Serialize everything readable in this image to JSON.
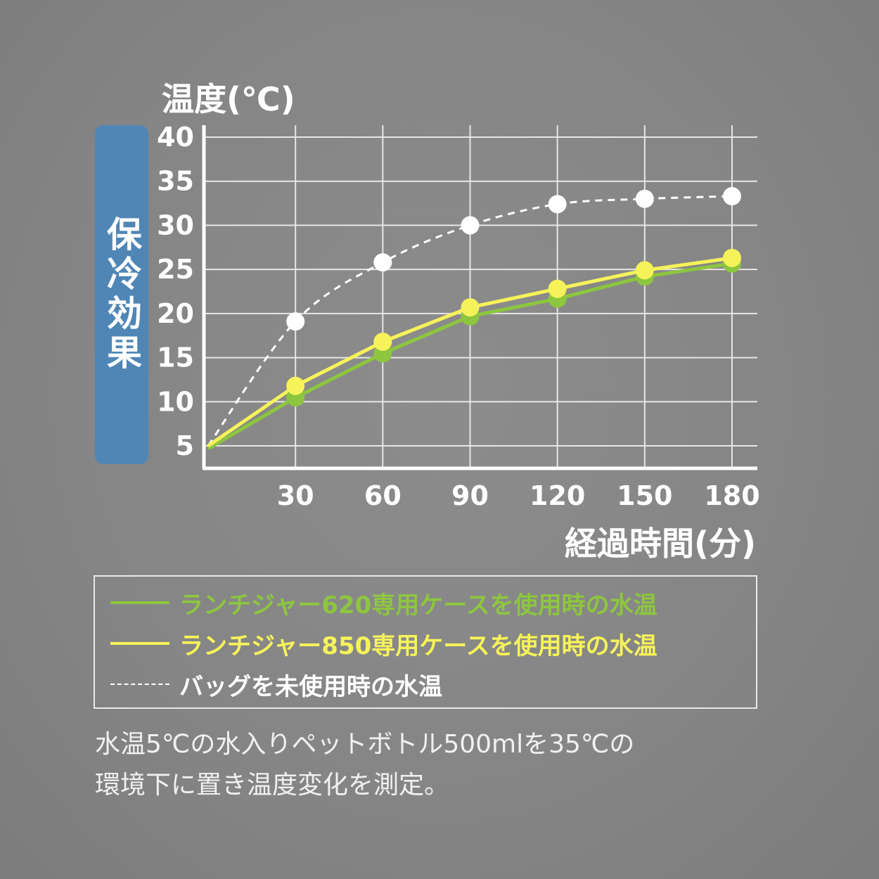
{
  "chart_data": {
    "type": "line",
    "ylabel": "温度(℃)",
    "xlabel": "経過時間(分)",
    "side_label": "保冷効果",
    "x": [
      0,
      30,
      60,
      90,
      120,
      150,
      180
    ],
    "xticks": [
      "30",
      "60",
      "90",
      "120",
      "150",
      "180"
    ],
    "yticks": [
      "40",
      "35",
      "30",
      "25",
      "20",
      "15",
      "10",
      "5"
    ],
    "ylim": [
      3,
      40
    ],
    "xlim": [
      0,
      185
    ],
    "grid": true,
    "series": [
      {
        "name": "ランチジャー620専用ケースを使用時の水温",
        "color": "#8dc63f",
        "style": "solid",
        "values": [
          5,
          10.8,
          15.8,
          20,
          22,
          24.5,
          26
        ]
      },
      {
        "name": "ランチジャー850専用ケースを使用時の水温",
        "color": "#f6f35a",
        "style": "solid",
        "values": [
          5,
          11.8,
          16.8,
          20.7,
          22.8,
          24.9,
          26.3
        ]
      },
      {
        "name": "バッグを未使用時の水温",
        "color": "#ffffff",
        "style": "dashed",
        "values": [
          5,
          19.1,
          25.8,
          30,
          32.4,
          33,
          33.3
        ]
      }
    ]
  },
  "legend": {
    "items": [
      {
        "label": "ランチジャー620専用ケースを使用時の水温",
        "color": "#8dc63f",
        "style": "solid"
      },
      {
        "label": "ランチジャー850専用ケースを使用時の水温",
        "color": "#f6f35a",
        "style": "solid"
      },
      {
        "label": "バッグを未使用時の水温",
        "color": "#ffffff",
        "style": "dashed"
      }
    ]
  },
  "note": {
    "line1": "水温5℃の水入りペットボトル500mlを35℃の",
    "line2": "環境下に置き温度変化を測定。"
  }
}
